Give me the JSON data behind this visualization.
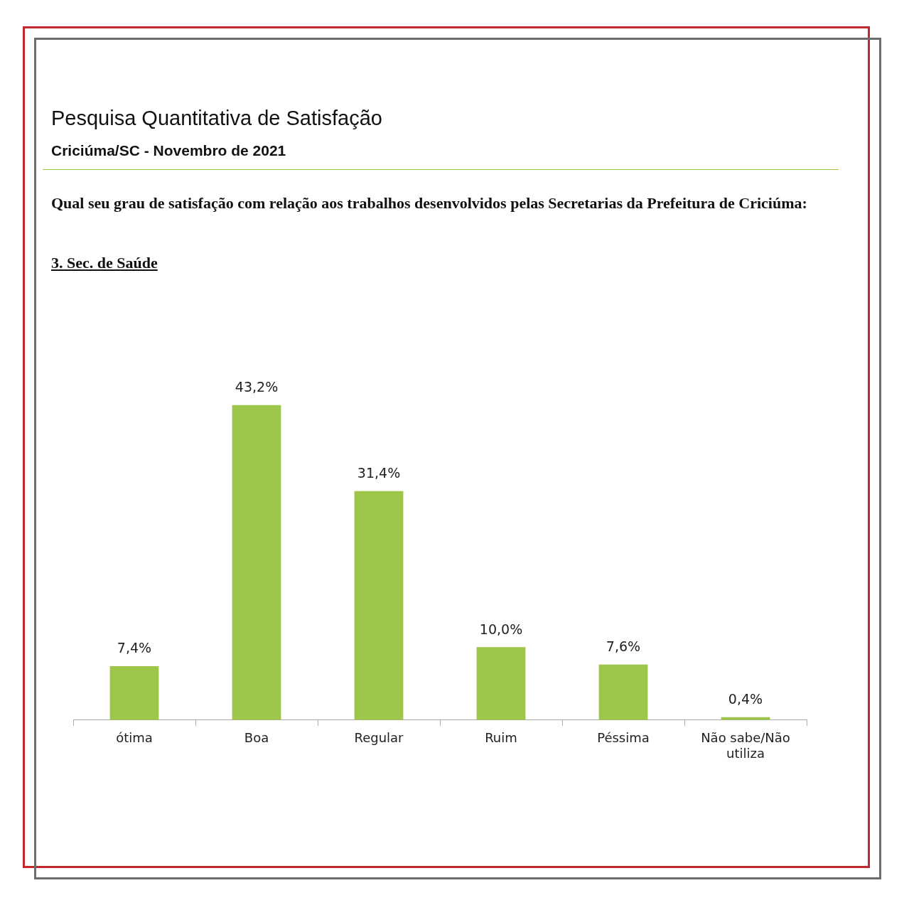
{
  "chart_data": {
    "type": "bar",
    "title": "Pesquisa Quantitativa de Satisfação",
    "subtitle": "Criciúma/SC - Novembro de 2021",
    "annotations": [
      "Qual seu  grau de satisfação com relação aos trabalhos desenvolvidos pelas Secretarias da Prefeitura de Criciúma:",
      "3. Sec. de Saúde"
    ],
    "categories": [
      "ótima",
      "Boa",
      "Regular",
      "Ruim",
      "Péssima",
      "Não sabe/Não utiliza"
    ],
    "values": [
      7.4,
      43.2,
      31.4,
      10.0,
      7.6,
      0.4
    ],
    "value_labels": [
      "7,4%",
      "43,2%",
      "31,4%",
      "10,0%",
      "7,6%",
      "0,4%"
    ],
    "color": "#9dc64a"
  }
}
